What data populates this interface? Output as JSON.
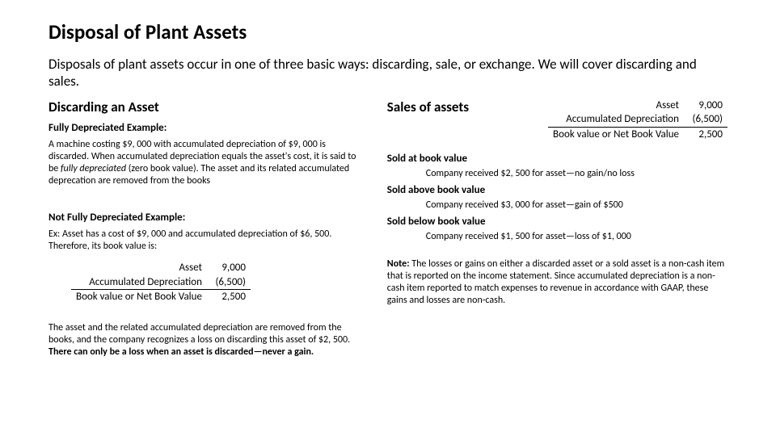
{
  "title": "Disposal of Plant Assets",
  "intro": "Disposals of plant assets occur in one of three basic ways: discarding, sale, or exchange. We will cover discarding and sales.",
  "left": {
    "heading": "Discarding an Asset",
    "fully_h": "Fully Depreciated Example:",
    "fully_p_pre": "A machine costing $9, 000 with accumulated depreciation of $9, 000 is discarded. When accumulated depreciation equals the asset's cost, it is said to be ",
    "fully_p_italic": "fully depreciated",
    "fully_p_post": " (zero book value). The asset and its related accumulated deprecation are removed from the books",
    "notfully_h": "Not Fully Depreciated Example:",
    "notfully_p": "Ex: Asset has a cost of $9, 000 and accumulated depreciation of $6, 500. Therefore, its book value is:",
    "closing_pre": "The asset and the related accumulated depreciation are removed from the books, and the company recognizes a loss on discarding this asset of $2, 500. ",
    "closing_bold": "There can only be a loss when an asset is discarded—never a gain."
  },
  "right": {
    "heading": "Sales of assets",
    "s1_h": "Sold at book value",
    "s1_line": "Company received $2, 500 for asset—no gain/no loss",
    "s2_h": "Sold above book value",
    "s2_line": "Company received $3, 000 for asset—gain of $500",
    "s3_h": "Sold below book value",
    "s3_line": "Company received $1, 500 for asset—loss of $1, 000",
    "note_label": "Note:",
    "note_body": " The losses or gains on either a discarded asset or a sold asset is a non-cash item that is reported on the income statement. Since accumulated depreciation is a non-cash item reported to match expenses to revenue in accordance with GAAP, these gains and losses are non-cash."
  },
  "calc": {
    "r1_label": "Asset",
    "r1_val": "9,000",
    "r2_label": "Accumulated Depreciation",
    "r2_val": "(6,500)",
    "r3_label": "Book value or Net Book Value",
    "r3_val": "2,500"
  }
}
